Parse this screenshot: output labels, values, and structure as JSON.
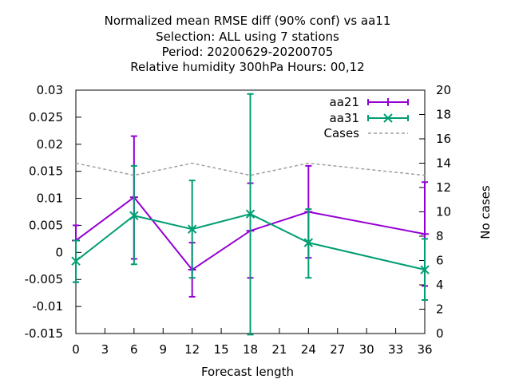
{
  "chart_data": {
    "type": "line",
    "title_lines": [
      "Normalized mean RMSE diff (90% conf) vs aa11",
      "Selection: ALL using     7 stations",
      "Period: 20200629-20200705",
      "Relative humidity 300hPa   Hours:  00,12"
    ],
    "xlabel": "Forecast length",
    "ylabel": "",
    "y2label": "No cases",
    "xlim": [
      0,
      36
    ],
    "ylim": [
      -0.015,
      0.03
    ],
    "y2lim": [
      0,
      20
    ],
    "x_ticks": [
      0,
      3,
      6,
      9,
      12,
      15,
      18,
      21,
      24,
      27,
      30,
      33,
      36
    ],
    "y_ticks": [
      "0.03",
      "0.025",
      "0.02",
      "0.015",
      "0.01",
      "0.005",
      "0",
      "-0.005",
      "-0.01",
      "-0.015"
    ],
    "y_tick_values": [
      0.03,
      0.025,
      0.02,
      0.015,
      0.01,
      0.005,
      0,
      -0.005,
      -0.01,
      -0.015
    ],
    "y2_ticks": [
      20,
      18,
      16,
      14,
      12,
      10,
      8,
      6,
      4,
      2,
      0
    ],
    "grid": false,
    "legend_position": "top-right",
    "series": [
      {
        "name": "aa21",
        "color": "#9400d3",
        "marker": "plus",
        "x": [
          0,
          6,
          12,
          18,
          24,
          36
        ],
        "y": [
          0.0022,
          0.0102,
          -0.0032,
          0.004,
          0.0075,
          0.0034
        ],
        "err_low": [
          -0.0055,
          -0.0012,
          -0.0082,
          -0.0047,
          -0.001,
          -0.0062
        ],
        "err_high": [
          0.005,
          0.0215,
          0.0018,
          0.0128,
          0.016,
          0.013
        ]
      },
      {
        "name": "aa31",
        "color": "#009e73",
        "marker": "cross",
        "x": [
          0,
          6,
          12,
          18,
          24,
          36
        ],
        "y": [
          -0.0016,
          0.0068,
          0.0043,
          0.0071,
          0.0018,
          -0.0032
        ],
        "err_low": [
          -0.0055,
          -0.0022,
          -0.0047,
          -0.0152,
          -0.0047,
          -0.0088
        ],
        "err_high": [
          0.0022,
          0.016,
          0.0133,
          0.0293,
          0.008,
          0.0025
        ]
      },
      {
        "name": "Cases",
        "color": "#a0a0a0",
        "axis": "y2",
        "style": "dashed",
        "x": [
          0,
          6,
          12,
          18,
          24,
          36
        ],
        "y": [
          14,
          13,
          14,
          13,
          14,
          13
        ]
      }
    ]
  }
}
